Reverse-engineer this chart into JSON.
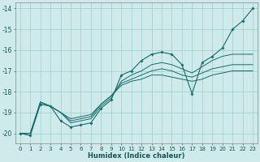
{
  "xlabel": "Humidex (Indice chaleur)",
  "bg_color": "#ceeaea",
  "grid_color": "#9ecece",
  "line_color": "#1a6b6b",
  "xlim": [
    -0.5,
    23.5
  ],
  "ylim": [
    -20.5,
    -13.7
  ],
  "yticks": [
    -20,
    -19,
    -18,
    -17,
    -16,
    -15,
    -14
  ],
  "xticks": [
    0,
    1,
    2,
    3,
    4,
    5,
    6,
    7,
    8,
    9,
    10,
    11,
    12,
    13,
    14,
    15,
    16,
    17,
    18,
    19,
    20,
    21,
    22,
    23
  ],
  "main_y": [
    -20.0,
    -20.1,
    -18.6,
    -18.7,
    -19.4,
    -19.7,
    -19.6,
    -19.5,
    -18.8,
    -18.4,
    -17.2,
    -17.0,
    -16.5,
    -16.2,
    -16.1,
    -16.2,
    -16.7,
    -18.1,
    -16.6,
    -16.3,
    -15.9,
    -15.0,
    -14.6,
    -14.0
  ],
  "line2_y": [
    -20.0,
    -20.1,
    -18.5,
    -18.7,
    -19.0,
    -19.5,
    -19.4,
    -19.3,
    -18.7,
    -18.3,
    -17.5,
    -17.2,
    -17.0,
    -16.7,
    -16.6,
    -16.7,
    -16.9,
    -17.1,
    -16.8,
    -16.5,
    -16.3,
    -16.2,
    -16.2,
    -16.2
  ],
  "line3_y": [
    -20.0,
    -20.0,
    -18.5,
    -18.7,
    -19.0,
    -19.4,
    -19.3,
    -19.2,
    -18.6,
    -18.2,
    -17.6,
    -17.4,
    -17.2,
    -17.0,
    -16.9,
    -17.0,
    -17.2,
    -17.3,
    -17.1,
    -16.9,
    -16.8,
    -16.7,
    -16.7,
    -16.7
  ],
  "line4_y": [
    -20.0,
    -20.0,
    -18.5,
    -18.7,
    -19.0,
    -19.3,
    -19.2,
    -19.1,
    -18.6,
    -18.2,
    -17.7,
    -17.5,
    -17.4,
    -17.2,
    -17.2,
    -17.3,
    -17.4,
    -17.5,
    -17.4,
    -17.2,
    -17.1,
    -17.0,
    -17.0,
    -17.0
  ]
}
